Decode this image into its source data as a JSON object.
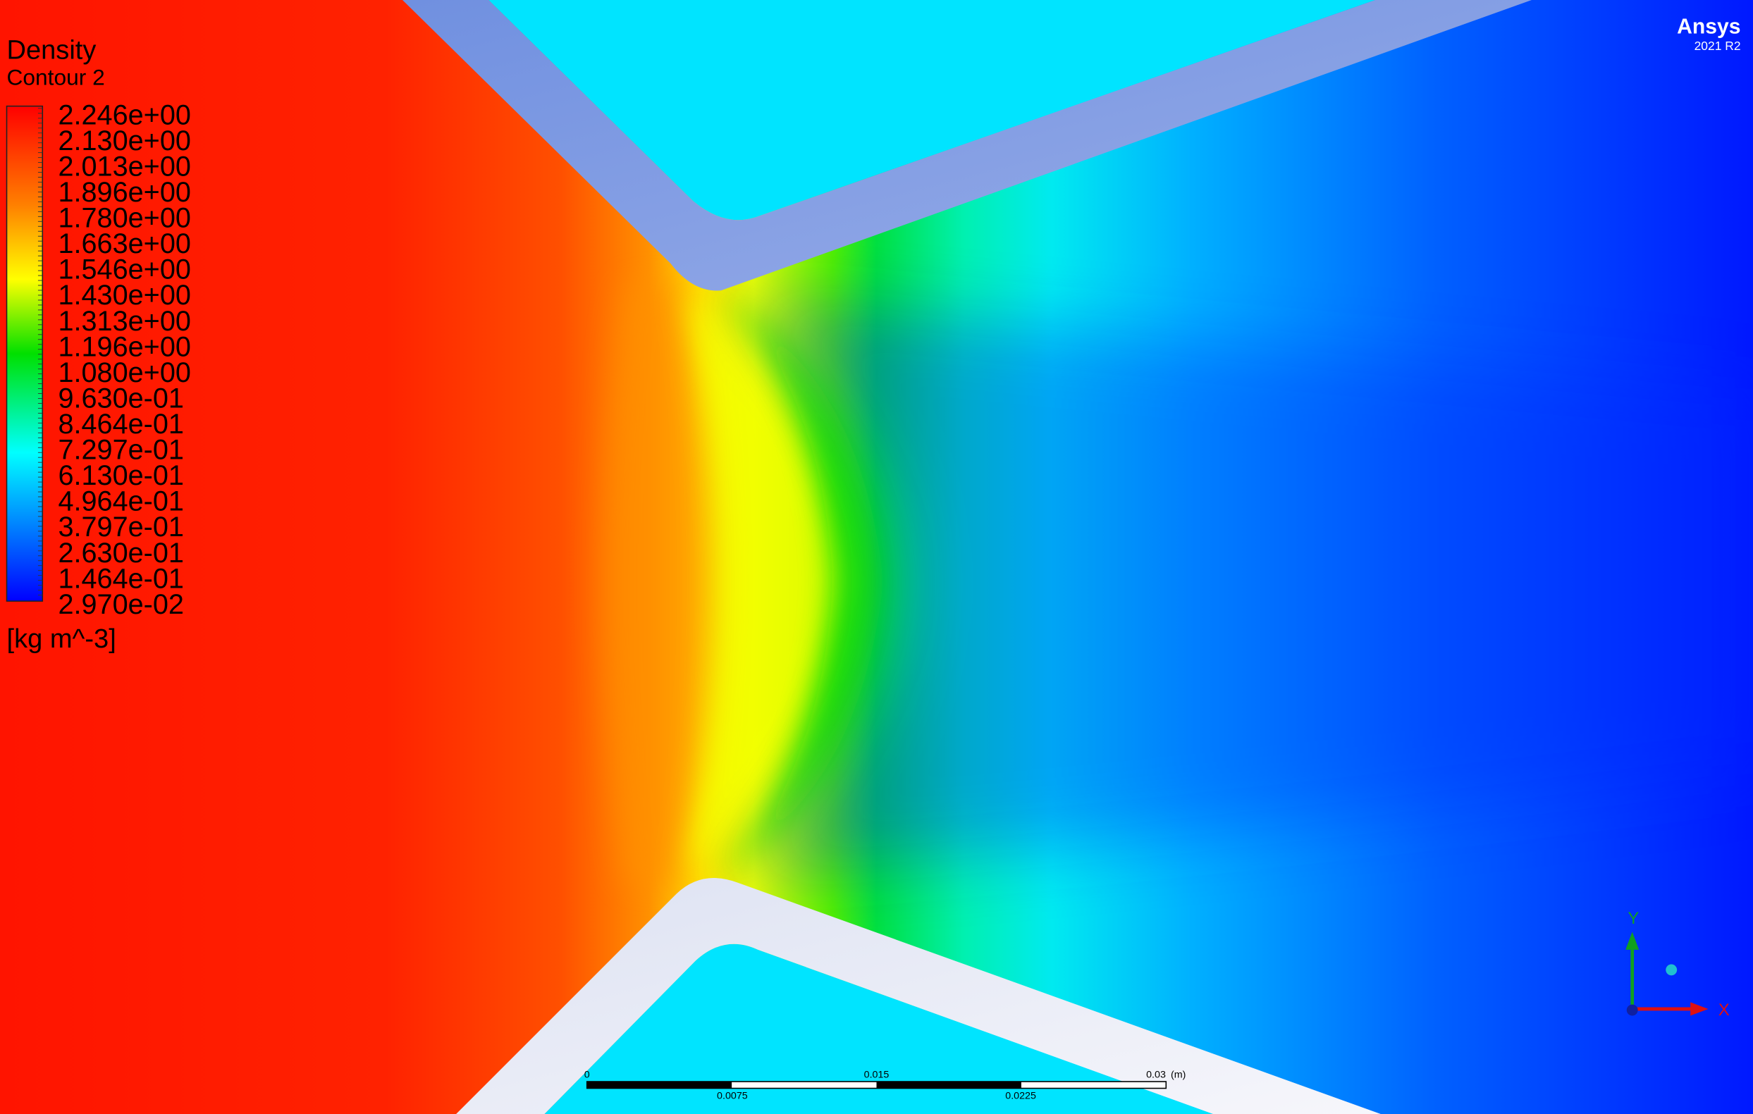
{
  "header": {
    "brand": "Ansys",
    "version": "2021 R2"
  },
  "legend": {
    "title": "Density",
    "subtitle": "Contour 2",
    "labels": [
      "2.246e+00",
      "2.130e+00",
      "2.013e+00",
      "1.896e+00",
      "1.780e+00",
      "1.663e+00",
      "1.546e+00",
      "1.430e+00",
      "1.313e+00",
      "1.196e+00",
      "1.080e+00",
      "9.630e-01",
      "8.464e-01",
      "7.297e-01",
      "6.130e-01",
      "4.964e-01",
      "3.797e-01",
      "2.630e-01",
      "1.464e-01",
      "2.970e-02"
    ],
    "unit": "[kg m^-3]"
  },
  "scale_bar": {
    "labels_top": [
      "0",
      "0.015",
      "0.03"
    ],
    "unit": "(m)",
    "labels_bottom": [
      "0.0075",
      "0.0225"
    ]
  },
  "axes_triad": {
    "x": "X",
    "y": "Y"
  }
}
